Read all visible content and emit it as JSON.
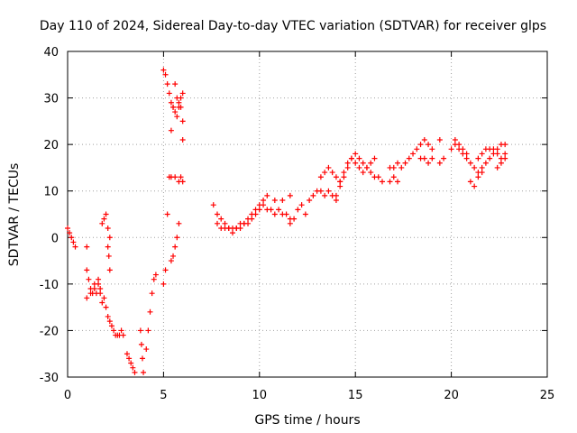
{
  "chart_data": {
    "type": "scatter",
    "title": "Day 110 of 2024, Sidereal Day-to-day VTEC variation (SDTVAR) for receiver glps",
    "xlabel": "GPS time / hours",
    "ylabel": "SDTVAR / TECUs",
    "xlim": [
      0,
      25
    ],
    "ylim": [
      -30,
      40
    ],
    "xticks": [
      0,
      5,
      10,
      15,
      20,
      25
    ],
    "yticks": [
      -30,
      -20,
      -10,
      0,
      10,
      20,
      30,
      40
    ],
    "grid": true,
    "marker": "+",
    "color": "#ff0000",
    "segments": [
      {
        "x": [
          0.0,
          0.1,
          0.2,
          0.3,
          0.4
        ],
        "y": [
          2,
          1,
          0,
          -1,
          -2
        ]
      },
      {
        "x": [
          1.0
        ],
        "y": [
          -2
        ]
      },
      {
        "x": [
          1.0,
          1.1,
          1.2,
          1.3,
          1.4,
          1.5,
          1.6,
          1.7
        ],
        "y": [
          -7,
          -9,
          -11,
          -12,
          -11,
          -12,
          -10,
          -11
        ]
      },
      {
        "x": [
          1.0,
          1.2,
          1.4,
          1.6
        ],
        "y": [
          -13,
          -12,
          -10,
          -9
        ]
      },
      {
        "x": [
          1.7,
          1.8,
          1.9,
          2.0,
          2.1,
          2.2,
          2.3,
          2.4,
          2.5,
          2.6,
          2.7,
          2.8,
          2.9
        ],
        "y": [
          -12,
          -14,
          -13,
          -15,
          -17,
          -18,
          -19,
          -20,
          -21,
          -21,
          -21,
          -20,
          -21
        ]
      },
      {
        "x": [
          1.8,
          1.9,
          2.0,
          2.1,
          2.2
        ],
        "y": [
          3,
          4,
          5,
          2,
          0
        ]
      },
      {
        "x": [
          2.1,
          2.15,
          2.2
        ],
        "y": [
          -2,
          -4,
          -7
        ]
      },
      {
        "x": [
          3.1,
          3.2,
          3.3,
          3.4,
          3.5
        ],
        "y": [
          -25,
          -26,
          -27,
          -28,
          -29
        ]
      },
      {
        "x": [
          3.8,
          3.85,
          3.9,
          3.95
        ],
        "y": [
          -20,
          -23,
          -26,
          -29
        ]
      },
      {
        "x": [
          4.1,
          4.2,
          4.3,
          4.4,
          4.5,
          4.6
        ],
        "y": [
          -24,
          -20,
          -16,
          -12,
          -9,
          -8
        ]
      },
      {
        "x": [
          5.0,
          5.1,
          5.2,
          5.3,
          5.4,
          5.5,
          5.6,
          5.7,
          5.8,
          5.9,
          6.0
        ],
        "y": [
          -10,
          -7,
          5,
          13,
          23,
          28,
          33,
          30,
          29,
          28,
          25
        ]
      },
      {
        "x": [
          5.0,
          5.1,
          5.2,
          5.3,
          5.4,
          5.5,
          5.6,
          5.7,
          5.8,
          5.9,
          6.0
        ],
        "y": [
          36,
          35,
          33,
          31,
          29,
          28,
          27,
          26,
          28,
          30,
          31
        ]
      },
      {
        "x": [
          5.4,
          5.5,
          5.6,
          5.7,
          5.8,
          5.9,
          6.0
        ],
        "y": [
          -5,
          -4,
          -2,
          0,
          3,
          13,
          21
        ]
      },
      {
        "x": [
          5.4,
          5.6,
          5.8,
          6.0
        ],
        "y": [
          13,
          13,
          12,
          12
        ]
      },
      {
        "x": [
          7.6,
          7.8,
          8.0,
          8.2,
          8.4,
          8.6,
          8.8,
          9.0,
          9.2,
          9.4,
          9.6,
          9.8,
          10.0
        ],
        "y": [
          7,
          5,
          4,
          3,
          2,
          2,
          2,
          2,
          3,
          3,
          4,
          5,
          6
        ]
      },
      {
        "x": [
          7.8,
          8.0,
          8.2,
          8.4,
          8.6,
          8.8,
          9.0,
          9.2,
          9.4,
          9.6,
          9.8,
          10.0,
          10.2
        ],
        "y": [
          3,
          2,
          2,
          2,
          1,
          2,
          3,
          3,
          4,
          5,
          6,
          7,
          8
        ]
      },
      {
        "x": [
          10.2,
          10.4,
          10.6,
          10.8,
          11.0,
          11.2,
          11.4,
          11.6
        ],
        "y": [
          7,
          6,
          6,
          5,
          6,
          5,
          5,
          4
        ]
      },
      {
        "x": [
          10.4,
          10.8,
          11.2,
          11.6
        ],
        "y": [
          9,
          8,
          8,
          9
        ]
      },
      {
        "x": [
          11.6,
          11.8,
          12.0,
          12.2,
          12.4
        ],
        "y": [
          3,
          4,
          6,
          7,
          5
        ]
      },
      {
        "x": [
          12.6,
          12.8,
          13.0,
          13.2,
          13.4,
          13.6,
          13.8,
          14.0
        ],
        "y": [
          8,
          9,
          10,
          10,
          9,
          10,
          9,
          8
        ]
      },
      {
        "x": [
          13.2,
          13.4,
          13.6,
          13.8,
          14.0,
          14.2
        ],
        "y": [
          13,
          14,
          15,
          14,
          13,
          12
        ]
      },
      {
        "x": [
          14.0,
          14.2,
          14.4,
          14.6,
          14.8,
          15.0,
          15.2,
          15.4,
          15.6,
          15.8,
          16.0,
          16.2,
          16.4
        ],
        "y": [
          9,
          11,
          13,
          15,
          17,
          18,
          17,
          16,
          15,
          14,
          13,
          13,
          12
        ]
      },
      {
        "x": [
          14.2,
          14.4,
          14.6,
          14.8,
          15.0,
          15.2,
          15.4,
          15.6,
          15.8,
          16.0
        ],
        "y": [
          12,
          14,
          16,
          17,
          16,
          15,
          14,
          15,
          16,
          17
        ]
      },
      {
        "x": [
          16.8,
          17.0,
          17.2
        ],
        "y": [
          12,
          13,
          12
        ]
      },
      {
        "x": [
          16.8,
          17.0,
          17.2,
          17.4,
          17.6,
          17.8,
          18.0,
          18.2,
          18.4,
          18.6,
          18.8,
          19.0
        ],
        "y": [
          15,
          15,
          16,
          15,
          16,
          17,
          18,
          19,
          20,
          21,
          20,
          19
        ]
      },
      {
        "x": [
          18.4,
          18.6,
          18.8,
          19.0,
          19.4,
          19.6
        ],
        "y": [
          17,
          17,
          16,
          17,
          16,
          17
        ]
      },
      {
        "x": [
          19.4
        ],
        "y": [
          21
        ]
      },
      {
        "x": [
          20.0,
          20.2,
          20.4,
          20.6,
          20.8,
          21.0,
          21.2,
          21.4,
          21.6,
          21.8,
          22.0,
          22.2,
          22.4,
          22.6,
          22.8
        ],
        "y": [
          19,
          20,
          19,
          18,
          17,
          16,
          15,
          14,
          15,
          16,
          17,
          18,
          19,
          20,
          20
        ]
      },
      {
        "x": [
          20.2,
          20.4,
          20.6,
          20.8,
          21.0,
          21.2,
          21.4,
          21.6
        ],
        "y": [
          21,
          20,
          19,
          18,
          12,
          11,
          13,
          14
        ]
      },
      {
        "x": [
          21.4,
          21.6,
          21.8,
          22.0,
          22.2,
          22.4,
          22.6,
          22.8
        ],
        "y": [
          17,
          18,
          19,
          19,
          19,
          18,
          17,
          17
        ]
      },
      {
        "x": [
          22.4,
          22.6,
          22.8
        ],
        "y": [
          15,
          16,
          18
        ]
      }
    ]
  }
}
